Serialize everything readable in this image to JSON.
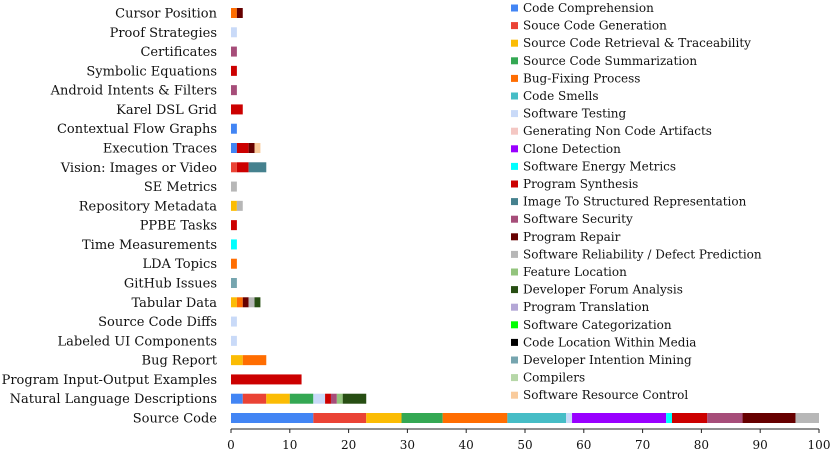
{
  "chart_data": {
    "type": "bar",
    "orientation": "horizontal",
    "stacked": true,
    "title": "",
    "xlabel": "",
    "ylabel": "",
    "xlim": [
      0,
      100
    ],
    "xticks": [
      0,
      10,
      20,
      30,
      40,
      50,
      60,
      70,
      80,
      90,
      100
    ],
    "grid": false,
    "legend_position": "right",
    "categories": [
      "Cursor Position",
      "Proof Strategies",
      "Certificates",
      "Symbolic Equations",
      "Android Intents & Filters",
      "Karel DSL Grid",
      "Contextual Flow Graphs",
      "Execution Traces",
      "Vision: Images or Video",
      "SE Metrics",
      "Repository Metadata",
      "PPBE Tasks",
      "Time Measurements",
      "LDA Topics",
      "GitHub Issues",
      "Tabular Data",
      "Source Code Diffs",
      "Labeled UI Components",
      "Bug Report",
      "Program Input-Output Examples",
      "Natural Language Descriptions",
      "Source Code"
    ],
    "series": [
      {
        "name": "Code Comprehension",
        "color": "#4285f4",
        "values": [
          0,
          0,
          0,
          0,
          0,
          0,
          1,
          1,
          0,
          0,
          0,
          0,
          0,
          0,
          0,
          0,
          0,
          0,
          0,
          0,
          2,
          14
        ]
      },
      {
        "name": "Souce Code Generation",
        "color": "#ea4335",
        "values": [
          0,
          0,
          0,
          0,
          0,
          0,
          0,
          0,
          1,
          0,
          0,
          0,
          0,
          0,
          0,
          0,
          0,
          0,
          0,
          0,
          4,
          9
        ]
      },
      {
        "name": "Source Code Retrieval & Traceability",
        "color": "#fbbc04",
        "values": [
          0,
          0,
          0,
          0,
          0,
          0,
          0,
          0,
          0,
          0,
          1,
          0,
          0,
          0,
          0,
          1,
          0,
          0,
          2,
          0,
          4,
          6
        ]
      },
      {
        "name": "Source Code Summarization",
        "color": "#34a853",
        "values": [
          0,
          0,
          0,
          0,
          0,
          0,
          0,
          0,
          0,
          0,
          0,
          0,
          0,
          0,
          0,
          0,
          0,
          0,
          0,
          0,
          4,
          7
        ]
      },
      {
        "name": "Bug-Fixing Process",
        "color": "#ff6d01",
        "values": [
          1,
          0,
          0,
          0,
          0,
          0,
          0,
          0,
          0,
          0,
          0,
          0,
          0,
          1,
          0,
          1,
          0,
          0,
          4,
          0,
          0,
          11
        ]
      },
      {
        "name": "Code Smells",
        "color": "#46bdc6",
        "values": [
          0,
          0,
          0,
          0,
          0,
          0,
          0,
          0,
          0,
          0,
          0,
          0,
          0,
          0,
          0,
          0,
          0,
          0,
          0,
          0,
          0,
          10
        ]
      },
      {
        "name": "Software Testing",
        "color": "#c9daf8",
        "values": [
          0,
          1,
          0,
          0,
          0,
          0,
          0,
          0,
          0,
          0,
          0,
          0,
          0,
          0,
          0,
          0,
          1,
          1,
          0,
          0,
          2,
          1
        ]
      },
      {
        "name": "Generating Non Code Artifacts",
        "color": "#f4c7c3",
        "values": [
          0,
          0,
          0,
          0,
          0,
          0,
          0,
          0,
          0,
          0,
          0,
          0,
          0,
          0,
          0,
          0,
          0,
          0,
          0,
          0,
          0,
          0
        ]
      },
      {
        "name": "Clone Detection",
        "color": "#9900ff",
        "values": [
          0,
          0,
          0,
          0,
          0,
          0,
          0,
          0,
          0,
          0,
          0,
          0,
          0,
          0,
          0,
          0,
          0,
          0,
          0,
          0,
          0,
          16
        ]
      },
      {
        "name": "Software Energy Metrics",
        "color": "#00ffff",
        "values": [
          0,
          0,
          0,
          0,
          0,
          0,
          0,
          0,
          0,
          0,
          0,
          0,
          1,
          0,
          0,
          0,
          0,
          0,
          0,
          0,
          0,
          1
        ]
      },
      {
        "name": "Program Synthesis",
        "color": "#cc0000",
        "values": [
          0,
          0,
          0,
          1,
          0,
          2,
          0,
          2,
          2,
          0,
          0,
          1,
          0,
          0,
          0,
          0,
          0,
          0,
          0,
          12,
          1,
          6
        ]
      },
      {
        "name": "Image To Structured Representation",
        "color": "#45818e",
        "values": [
          0,
          0,
          0,
          0,
          0,
          0,
          0,
          0,
          3,
          0,
          0,
          0,
          0,
          0,
          0,
          0,
          0,
          0,
          0,
          0,
          0,
          0
        ]
      },
      {
        "name": "Software Security",
        "color": "#a64d79",
        "values": [
          0,
          0,
          1,
          0,
          1,
          0,
          0,
          0,
          0,
          0,
          0,
          0,
          0,
          0,
          0,
          0,
          0,
          0,
          0,
          0,
          1,
          6
        ]
      },
      {
        "name": "Program Repair",
        "color": "#660000",
        "values": [
          1,
          0,
          0,
          0,
          0,
          0,
          0,
          1,
          0,
          0,
          0,
          0,
          0,
          0,
          0,
          1,
          0,
          0,
          0,
          0,
          0,
          9
        ]
      },
      {
        "name": "Software Reliability / Defect Prediction",
        "color": "#b7b7b7",
        "values": [
          0,
          0,
          0,
          0,
          0,
          0,
          0,
          0,
          0,
          1,
          1,
          0,
          0,
          0,
          0,
          1,
          0,
          0,
          0,
          0,
          0,
          4
        ]
      },
      {
        "name": "Feature Location",
        "color": "#93c47d",
        "values": [
          0,
          0,
          0,
          0,
          0,
          0,
          0,
          0,
          0,
          0,
          0,
          0,
          0,
          0,
          0,
          0,
          0,
          0,
          0,
          0,
          1,
          0
        ]
      },
      {
        "name": "Developer Forum Analysis",
        "color": "#274e13",
        "values": [
          0,
          0,
          0,
          0,
          0,
          0,
          0,
          0,
          0,
          0,
          0,
          0,
          0,
          0,
          0,
          1,
          0,
          0,
          0,
          0,
          4,
          0
        ]
      },
      {
        "name": "Program Translation",
        "color": "#b4a7d6",
        "values": [
          0,
          0,
          0,
          0,
          0,
          0,
          0,
          0,
          0,
          0,
          0,
          0,
          0,
          0,
          0,
          0,
          0,
          0,
          0,
          0,
          0,
          0
        ]
      },
      {
        "name": "Software Categorization",
        "color": "#00ff00",
        "values": [
          0,
          0,
          0,
          0,
          0,
          0,
          0,
          0,
          0,
          0,
          0,
          0,
          0,
          0,
          0,
          0,
          0,
          0,
          0,
          0,
          0,
          0
        ]
      },
      {
        "name": "Code Location Within Media",
        "color": "#000000",
        "values": [
          0,
          0,
          0,
          0,
          0,
          0,
          0,
          0,
          0,
          0,
          0,
          0,
          0,
          0,
          0,
          0,
          0,
          0,
          0,
          0,
          0,
          0
        ]
      },
      {
        "name": "Developer Intention Mining",
        "color": "#76a5af",
        "values": [
          0,
          0,
          0,
          0,
          0,
          0,
          0,
          0,
          0,
          0,
          0,
          0,
          0,
          0,
          1,
          0,
          0,
          0,
          0,
          0,
          0,
          0
        ]
      },
      {
        "name": "Compilers",
        "color": "#b6d7a8",
        "values": [
          0,
          0,
          0,
          0,
          0,
          0,
          0,
          0,
          0,
          0,
          0,
          0,
          0,
          0,
          0,
          0,
          0,
          0,
          0,
          0,
          0,
          0
        ]
      },
      {
        "name": "Software Resource Control",
        "color": "#f9cb9c",
        "values": [
          0,
          0,
          0,
          0,
          0,
          0,
          0,
          1,
          0,
          0,
          0,
          0,
          0,
          0,
          0,
          0,
          0,
          0,
          0,
          0,
          0,
          0
        ]
      }
    ]
  }
}
